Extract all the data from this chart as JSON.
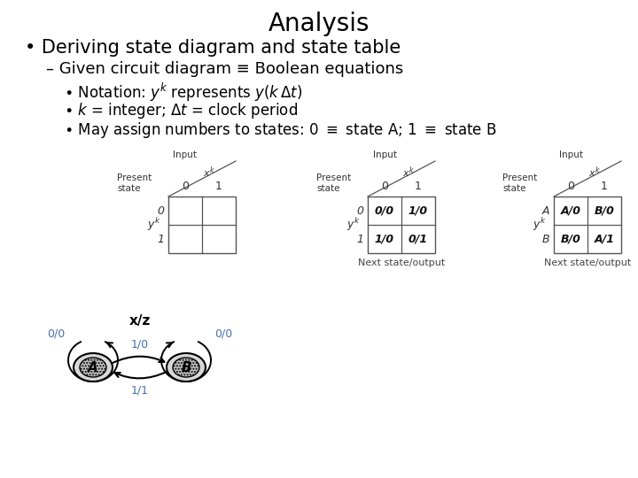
{
  "title": "Analysis",
  "bullet1": "Deriving state diagram and state table",
  "bullet2": "Given circuit diagram ≡ Boolean equations",
  "bg_color": "#ffffff",
  "title_color": "#000000",
  "text_color": "#000000",
  "blue_color": "#4a6fa8",
  "gray_color": "#888888",
  "table1_cells": [
    [
      "",
      ""
    ],
    [
      "",
      ""
    ]
  ],
  "table2_cells": [
    [
      "0/0",
      "1/0"
    ],
    [
      "1/0",
      "0/1"
    ]
  ],
  "table3_cells": [
    [
      "A/0",
      "B/0"
    ],
    [
      "B/0",
      "A/1"
    ]
  ],
  "table2_row_labels": [
    "0",
    "1"
  ],
  "table3_row_labels": [
    "A",
    "B"
  ],
  "col_labels": [
    "0",
    "1"
  ],
  "next_state_label": "Next state/output",
  "xz_label": "x/z",
  "node_a_label": "A",
  "node_b_label": "B",
  "arrow_labels": [
    "0/0",
    "1/0",
    "0/0",
    "1/1"
  ]
}
